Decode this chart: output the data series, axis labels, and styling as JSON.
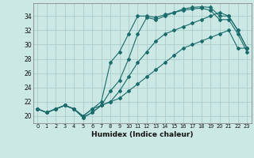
{
  "xlabel": "Humidex (Indice chaleur)",
  "bg_color": "#cce8e4",
  "grid_color": "#aacccc",
  "line_color": "#1a6b6b",
  "xlim": [
    -0.5,
    23.5
  ],
  "ylim": [
    19.0,
    35.8
  ],
  "xticks": [
    0,
    1,
    2,
    3,
    4,
    5,
    6,
    7,
    8,
    9,
    10,
    11,
    12,
    13,
    14,
    15,
    16,
    17,
    18,
    19,
    20,
    21,
    22,
    23
  ],
  "yticks": [
    20,
    22,
    24,
    26,
    28,
    30,
    32,
    34
  ],
  "line1_y": [
    21.0,
    20.5,
    21.0,
    21.5,
    21.0,
    20.0,
    21.0,
    22.0,
    27.5,
    29.0,
    31.5,
    34.0,
    34.0,
    33.8,
    34.2,
    34.5,
    35.0,
    35.2,
    35.3,
    35.2,
    34.0,
    34.0,
    32.0,
    29.5
  ],
  "line2_y": [
    21.0,
    20.5,
    21.0,
    21.5,
    21.0,
    20.0,
    21.0,
    21.5,
    23.5,
    25.0,
    28.0,
    31.5,
    33.8,
    33.5,
    34.0,
    34.5,
    34.8,
    35.0,
    35.1,
    34.8,
    33.5,
    33.5,
    31.5,
    29.0
  ],
  "line3_y": [
    21.0,
    20.5,
    21.0,
    21.5,
    21.0,
    19.8,
    20.5,
    21.5,
    22.0,
    23.5,
    25.5,
    27.5,
    29.0,
    30.5,
    31.5,
    32.0,
    32.5,
    33.0,
    33.5,
    34.0,
    34.5,
    34.0,
    32.0,
    29.5
  ],
  "line4_y": [
    21.0,
    20.5,
    21.0,
    21.5,
    21.0,
    19.8,
    20.5,
    21.5,
    22.0,
    22.5,
    23.5,
    24.5,
    25.5,
    26.5,
    27.5,
    28.5,
    29.5,
    30.0,
    30.5,
    31.0,
    31.5,
    32.0,
    29.5,
    29.5
  ]
}
